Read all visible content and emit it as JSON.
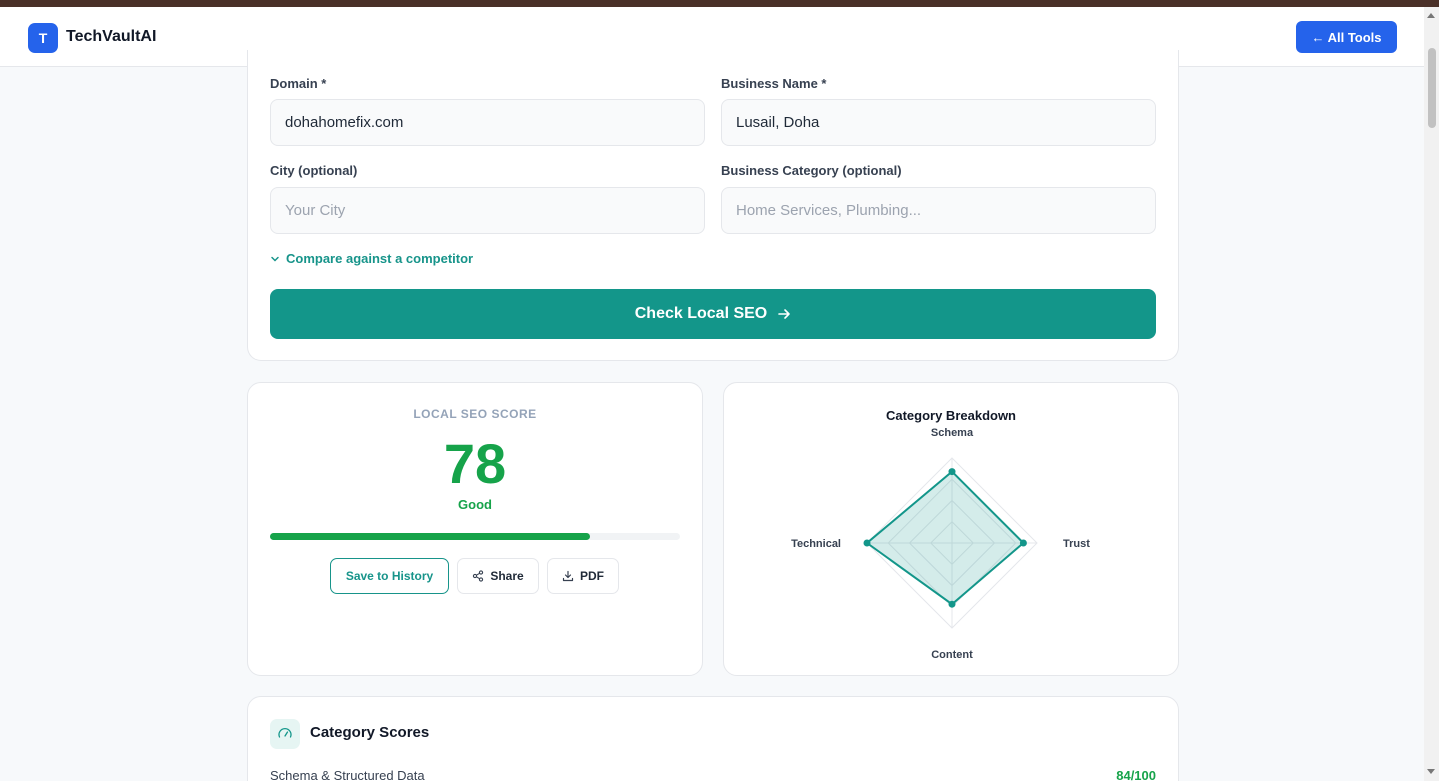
{
  "header": {
    "logo_letter": "T",
    "brand": "TechVaultAI",
    "all_tools_label": "← All Tools"
  },
  "form": {
    "domain_label": "Domain *",
    "domain_value": "dohahomefix.com",
    "business_name_label": "Business Name *",
    "business_name_value": "Lusail, Doha",
    "city_label": "City (optional)",
    "city_placeholder": "Your City",
    "category_label": "Business Category (optional)",
    "category_placeholder": "Home Services, Plumbing...",
    "compare_label": "Compare against a competitor",
    "submit_label": "Check Local SEO"
  },
  "score": {
    "label": "LOCAL SEO SCORE",
    "value": "78",
    "grade": "Good",
    "progress_fraction": 0.78,
    "save_label": "Save to History",
    "share_label": "Share",
    "pdf_label": "PDF"
  },
  "chart_data": {
    "type": "radar",
    "title": "Category Breakdown",
    "axes": [
      "Schema",
      "Trust",
      "Content",
      "Technical"
    ],
    "values": [
      84,
      84,
      72,
      100
    ],
    "max": 100
  },
  "category_scores": {
    "title": "Category Scores",
    "rows": [
      {
        "name": "Schema & Structured Data",
        "score": "84/100"
      }
    ]
  },
  "colors": {
    "accent": "#13968a",
    "brand_blue": "#2563eb",
    "score_green": "#16a34a"
  }
}
